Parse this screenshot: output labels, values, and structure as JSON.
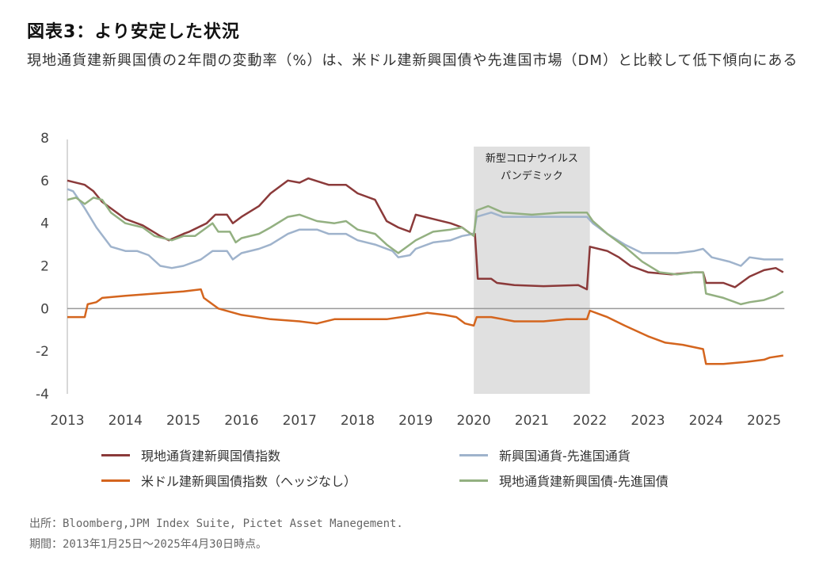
{
  "header": {
    "title": "図表3：より安定した状況",
    "subtitle": "現地通貨建新興国債の2年間の変動率（%）は、米ドル建新興国債や先進国市場（DM）と比較して低下傾向にある"
  },
  "footer": {
    "source": "出所：Bloomberg,JPM Index Suite, Pictet Asset Manegement.",
    "period": "期間：2013年1月25日～2025年4月30日時点。"
  },
  "chart_data": {
    "type": "line",
    "title": "",
    "xlabel": "",
    "ylabel": "",
    "xlim": [
      2013.0,
      2025.35
    ],
    "ylim": [
      -4,
      8
    ],
    "x_ticks": [
      "2013",
      "2014",
      "2015",
      "2016",
      "2017",
      "2018",
      "2019",
      "2020",
      "2021",
      "2022",
      "2023",
      "2024",
      "2025"
    ],
    "y_ticks": [
      "8",
      "6",
      "4",
      "2",
      "0",
      "-2",
      "-4"
    ],
    "y_tick_values": [
      8,
      6,
      4,
      2,
      0,
      -2,
      -4
    ],
    "grid": false,
    "zero_line": true,
    "legend_position": "bottom",
    "annotation": {
      "label_line1": "新型コロナウイルス",
      "label_line2": "パンデミック",
      "x_start": 2020.0,
      "x_end": 2022.0,
      "color": "#e0e0e0"
    },
    "series": [
      {
        "name": "現地通貨建新興国債指数",
        "color": "#8b3a3a",
        "points": [
          [
            2013.0,
            6.0
          ],
          [
            2013.3,
            5.8
          ],
          [
            2013.45,
            5.5
          ],
          [
            2013.6,
            5.0
          ],
          [
            2013.8,
            4.6
          ],
          [
            2014.0,
            4.2
          ],
          [
            2014.3,
            3.9
          ],
          [
            2014.6,
            3.4
          ],
          [
            2014.75,
            3.2
          ],
          [
            2015.0,
            3.5
          ],
          [
            2015.1,
            3.6
          ],
          [
            2015.4,
            4.0
          ],
          [
            2015.55,
            4.4
          ],
          [
            2015.75,
            4.4
          ],
          [
            2015.85,
            4.0
          ],
          [
            2016.0,
            4.3
          ],
          [
            2016.3,
            4.8
          ],
          [
            2016.5,
            5.4
          ],
          [
            2016.8,
            6.0
          ],
          [
            2017.0,
            5.9
          ],
          [
            2017.15,
            6.1
          ],
          [
            2017.5,
            5.8
          ],
          [
            2017.8,
            5.8
          ],
          [
            2018.0,
            5.4
          ],
          [
            2018.3,
            5.1
          ],
          [
            2018.5,
            4.1
          ],
          [
            2018.7,
            3.8
          ],
          [
            2018.9,
            3.6
          ],
          [
            2019.0,
            4.4
          ],
          [
            2019.3,
            4.2
          ],
          [
            2019.6,
            4.0
          ],
          [
            2019.8,
            3.8
          ],
          [
            2019.95,
            3.5
          ],
          [
            2020.02,
            3.5
          ],
          [
            2020.07,
            1.4
          ],
          [
            2020.3,
            1.4
          ],
          [
            2020.4,
            1.2
          ],
          [
            2020.7,
            1.1
          ],
          [
            2021.2,
            1.05
          ],
          [
            2021.8,
            1.1
          ],
          [
            2021.95,
            0.9
          ],
          [
            2022.0,
            2.9
          ],
          [
            2022.3,
            2.7
          ],
          [
            2022.5,
            2.4
          ],
          [
            2022.7,
            2.0
          ],
          [
            2023.0,
            1.7
          ],
          [
            2023.4,
            1.6
          ],
          [
            2023.8,
            1.7
          ],
          [
            2023.95,
            1.7
          ],
          [
            2024.0,
            1.2
          ],
          [
            2024.3,
            1.2
          ],
          [
            2024.5,
            1.0
          ],
          [
            2024.75,
            1.5
          ],
          [
            2025.0,
            1.8
          ],
          [
            2025.2,
            1.9
          ],
          [
            2025.33,
            1.7
          ]
        ]
      },
      {
        "name": "新興国通貨-先進国通貨",
        "color": "#9fb3cc",
        "points": [
          [
            2013.0,
            5.6
          ],
          [
            2013.1,
            5.5
          ],
          [
            2013.3,
            4.7
          ],
          [
            2013.5,
            3.8
          ],
          [
            2013.75,
            2.9
          ],
          [
            2014.0,
            2.7
          ],
          [
            2014.2,
            2.7
          ],
          [
            2014.4,
            2.5
          ],
          [
            2014.6,
            2.0
          ],
          [
            2014.8,
            1.9
          ],
          [
            2015.0,
            2.0
          ],
          [
            2015.3,
            2.3
          ],
          [
            2015.5,
            2.7
          ],
          [
            2015.75,
            2.7
          ],
          [
            2015.85,
            2.3
          ],
          [
            2016.0,
            2.6
          ],
          [
            2016.3,
            2.8
          ],
          [
            2016.5,
            3.0
          ],
          [
            2016.8,
            3.5
          ],
          [
            2017.0,
            3.7
          ],
          [
            2017.3,
            3.7
          ],
          [
            2017.5,
            3.5
          ],
          [
            2017.8,
            3.5
          ],
          [
            2018.0,
            3.2
          ],
          [
            2018.3,
            3.0
          ],
          [
            2018.6,
            2.7
          ],
          [
            2018.7,
            2.4
          ],
          [
            2018.9,
            2.5
          ],
          [
            2019.0,
            2.8
          ],
          [
            2019.3,
            3.1
          ],
          [
            2019.6,
            3.2
          ],
          [
            2019.8,
            3.4
          ],
          [
            2020.0,
            3.5
          ],
          [
            2020.05,
            4.3
          ],
          [
            2020.3,
            4.5
          ],
          [
            2020.5,
            4.3
          ],
          [
            2021.0,
            4.3
          ],
          [
            2021.5,
            4.3
          ],
          [
            2021.95,
            4.3
          ],
          [
            2022.05,
            4.0
          ],
          [
            2022.3,
            3.5
          ],
          [
            2022.6,
            3.0
          ],
          [
            2022.9,
            2.6
          ],
          [
            2023.2,
            2.6
          ],
          [
            2023.5,
            2.6
          ],
          [
            2023.8,
            2.7
          ],
          [
            2023.95,
            2.8
          ],
          [
            2024.1,
            2.4
          ],
          [
            2024.4,
            2.2
          ],
          [
            2024.6,
            2.0
          ],
          [
            2024.75,
            2.4
          ],
          [
            2025.0,
            2.3
          ],
          [
            2025.2,
            2.3
          ],
          [
            2025.33,
            2.3
          ]
        ]
      },
      {
        "name": "米ドル建新興国債指数（ヘッジなし）",
        "color": "#d4651e",
        "points": [
          [
            2013.0,
            -0.4
          ],
          [
            2013.3,
            -0.4
          ],
          [
            2013.35,
            0.2
          ],
          [
            2013.5,
            0.3
          ],
          [
            2013.6,
            0.5
          ],
          [
            2014.0,
            0.6
          ],
          [
            2014.5,
            0.7
          ],
          [
            2015.0,
            0.8
          ],
          [
            2015.3,
            0.9
          ],
          [
            2015.35,
            0.5
          ],
          [
            2015.6,
            0.0
          ],
          [
            2016.0,
            -0.3
          ],
          [
            2016.5,
            -0.5
          ],
          [
            2017.0,
            -0.6
          ],
          [
            2017.3,
            -0.7
          ],
          [
            2017.6,
            -0.5
          ],
          [
            2018.0,
            -0.5
          ],
          [
            2018.5,
            -0.5
          ],
          [
            2019.0,
            -0.3
          ],
          [
            2019.2,
            -0.2
          ],
          [
            2019.5,
            -0.3
          ],
          [
            2019.7,
            -0.4
          ],
          [
            2019.85,
            -0.7
          ],
          [
            2020.0,
            -0.8
          ],
          [
            2020.05,
            -0.4
          ],
          [
            2020.3,
            -0.4
          ],
          [
            2020.7,
            -0.6
          ],
          [
            2021.2,
            -0.6
          ],
          [
            2021.6,
            -0.5
          ],
          [
            2021.95,
            -0.5
          ],
          [
            2022.0,
            -0.1
          ],
          [
            2022.3,
            -0.4
          ],
          [
            2022.6,
            -0.8
          ],
          [
            2023.0,
            -1.3
          ],
          [
            2023.3,
            -1.6
          ],
          [
            2023.6,
            -1.7
          ],
          [
            2023.95,
            -1.9
          ],
          [
            2024.0,
            -2.6
          ],
          [
            2024.3,
            -2.6
          ],
          [
            2024.7,
            -2.5
          ],
          [
            2025.0,
            -2.4
          ],
          [
            2025.1,
            -2.3
          ],
          [
            2025.33,
            -2.2
          ]
        ]
      },
      {
        "name": "現地通貨建新興国債-先進国債",
        "color": "#93b081",
        "points": [
          [
            2013.0,
            5.1
          ],
          [
            2013.15,
            5.2
          ],
          [
            2013.3,
            4.9
          ],
          [
            2013.45,
            5.2
          ],
          [
            2013.6,
            5.1
          ],
          [
            2013.75,
            4.5
          ],
          [
            2014.0,
            4.0
          ],
          [
            2014.3,
            3.8
          ],
          [
            2014.5,
            3.4
          ],
          [
            2014.8,
            3.2
          ],
          [
            2015.0,
            3.4
          ],
          [
            2015.2,
            3.4
          ],
          [
            2015.5,
            4.0
          ],
          [
            2015.6,
            3.6
          ],
          [
            2015.8,
            3.6
          ],
          [
            2015.9,
            3.1
          ],
          [
            2016.0,
            3.3
          ],
          [
            2016.3,
            3.5
          ],
          [
            2016.5,
            3.8
          ],
          [
            2016.8,
            4.3
          ],
          [
            2017.0,
            4.4
          ],
          [
            2017.3,
            4.1
          ],
          [
            2017.6,
            4.0
          ],
          [
            2017.8,
            4.1
          ],
          [
            2018.0,
            3.7
          ],
          [
            2018.3,
            3.5
          ],
          [
            2018.5,
            3.0
          ],
          [
            2018.7,
            2.6
          ],
          [
            2018.9,
            3.0
          ],
          [
            2019.0,
            3.2
          ],
          [
            2019.3,
            3.6
          ],
          [
            2019.6,
            3.7
          ],
          [
            2019.8,
            3.8
          ],
          [
            2020.0,
            3.4
          ],
          [
            2020.05,
            4.6
          ],
          [
            2020.25,
            4.8
          ],
          [
            2020.5,
            4.5
          ],
          [
            2021.0,
            4.4
          ],
          [
            2021.5,
            4.5
          ],
          [
            2021.95,
            4.5
          ],
          [
            2022.05,
            4.1
          ],
          [
            2022.3,
            3.5
          ],
          [
            2022.6,
            2.9
          ],
          [
            2022.9,
            2.2
          ],
          [
            2023.2,
            1.7
          ],
          [
            2023.5,
            1.6
          ],
          [
            2023.8,
            1.7
          ],
          [
            2023.95,
            1.7
          ],
          [
            2024.0,
            0.7
          ],
          [
            2024.3,
            0.5
          ],
          [
            2024.6,
            0.2
          ],
          [
            2024.75,
            0.3
          ],
          [
            2025.0,
            0.4
          ],
          [
            2025.2,
            0.6
          ],
          [
            2025.33,
            0.8
          ]
        ]
      }
    ]
  }
}
